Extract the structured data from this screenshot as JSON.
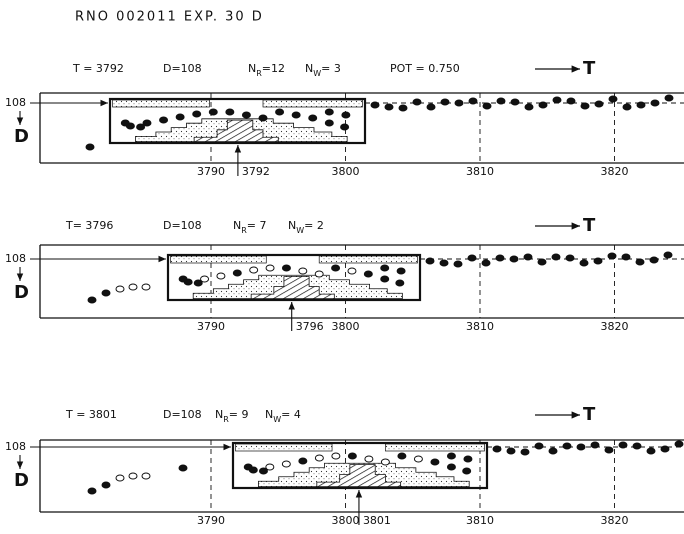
{
  "header": {
    "title": "RNO  002011  EXP. 30   D"
  },
  "panels": [
    {
      "t": "T = 3792",
      "d": "D=108",
      "nr_label": "N",
      "nr_sub": "R",
      "nr_value": "=12",
      "nw_label": "N",
      "nw_sub": "W",
      "nw_value": "= 3",
      "pot": "POT = 0.750",
      "arrow_label": "T",
      "level": "108",
      "axis_label": "D",
      "cursor": 3792,
      "ticks": [
        3790,
        3800,
        3810,
        3820
      ]
    },
    {
      "t": "T= 3796",
      "d": "D=108",
      "nr_label": "N",
      "nr_sub": "R",
      "nr_value": "= 7",
      "nw_label": "N",
      "nw_sub": "W",
      "nw_value": "= 2",
      "arrow_label": "T",
      "level": "108",
      "axis_label": "D",
      "cursor": 3796,
      "ticks": [
        3790,
        3800,
        3810,
        3820
      ]
    },
    {
      "t": "T = 3801",
      "d": "D=108",
      "nr_label": "N",
      "nr_sub": "R",
      "nr_value": "= 9",
      "nw_label": "N",
      "nw_sub": "W",
      "nw_value": "= 4",
      "arrow_label": "T",
      "level": "108",
      "axis_label": "D",
      "cursor": 3801,
      "ticks": [
        3790,
        3800,
        3810,
        3820
      ]
    }
  ]
}
